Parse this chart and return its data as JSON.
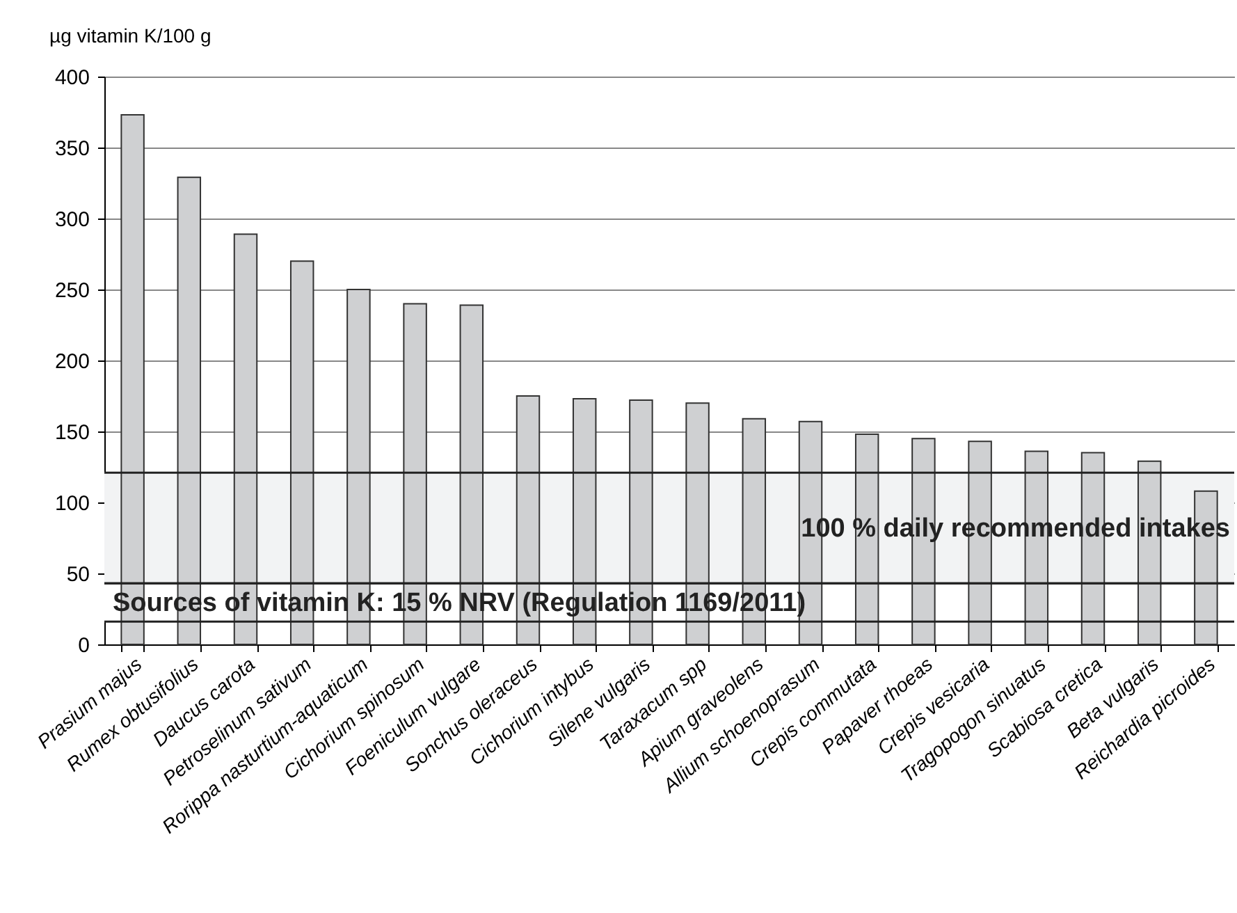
{
  "chart_data": {
    "type": "bar",
    "ylabel": "µg vitamin K/100 g",
    "categories": [
      "Prasium majus",
      "Rumex obtusifolius",
      "Daucus carota",
      "Petroselinum sativum",
      "Rorippa nasturtium-aquaticum",
      "Cichorium spinosum",
      "Foeniculum vulgare",
      "Sonchus oleraceus",
      "Cichorium intybus",
      "Silene vulgaris",
      "Taraxacum spp",
      "Apium graveolens",
      "Allium schoenoprasum",
      "Crepis commutata",
      "Papaver rhoeas",
      "Crepis vesicaria",
      "Tragopogon sinuatus",
      "Scabiosa cretica",
      "Beta vulgaris",
      "Reichardia picroides"
    ],
    "values": [
      373,
      329,
      289,
      270,
      250,
      240,
      239,
      175,
      173,
      172,
      170,
      159,
      157,
      148,
      145,
      143,
      136,
      135,
      129,
      108
    ],
    "color": "#cfd0d2",
    "ylim": [
      0,
      400
    ],
    "yticks": [
      0,
      50,
      100,
      150,
      200,
      250,
      300,
      350,
      400
    ],
    "grid": "y",
    "bands": [
      {
        "axis": "y",
        "from": 43,
        "to": 121,
        "label": "100 % daily recommended intakes",
        "color": "#f2f3f4"
      },
      {
        "axis": "y",
        "from": 16,
        "to": 43,
        "label": "Sources of vitamin K: 15 % NRV (Regulation 1169/2011)",
        "color": "#ffffff"
      }
    ]
  }
}
